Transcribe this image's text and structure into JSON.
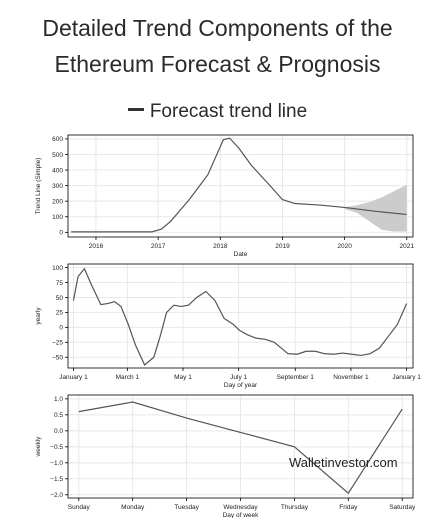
{
  "header": {
    "title_line1": "Detailed Trend Components of the",
    "title_line2": "Ethereum Forecast & Prognosis",
    "legend_label": "Forecast trend line"
  },
  "watermark": "Walletinvestor.com",
  "colors": {
    "line": "#555555",
    "band": "#cccccc",
    "axis": "#000000",
    "grid": "#e8e8e8"
  },
  "chart_data": [
    {
      "type": "line",
      "name": "trend",
      "title": "",
      "xlabel": "Date",
      "ylabel": "Trend Line (Simple)",
      "xlim": [
        2015.55,
        2021.1
      ],
      "ylim": [
        -30,
        625
      ],
      "xticks": [
        2016,
        2017,
        2018,
        2019,
        2020,
        2021
      ],
      "xticklabels": [
        "2016",
        "2017",
        "2018",
        "2019",
        "2020",
        "2021"
      ],
      "yticks": [
        0,
        100,
        200,
        300,
        400,
        500,
        600
      ],
      "yticklabels": [
        "0",
        "100",
        "200",
        "300",
        "400",
        "500",
        "600"
      ],
      "grid": true,
      "series": [
        {
          "x": [
            2015.6,
            2016.0,
            2016.5,
            2016.9,
            2017.05,
            2017.2,
            2017.5,
            2017.8,
            2018.05,
            2018.15,
            2018.3,
            2018.5,
            2018.8,
            2019.0,
            2019.2,
            2019.6,
            2020.0,
            2020.5,
            2021.0
          ],
          "y": [
            3,
            3,
            3,
            3,
            20,
            70,
            210,
            370,
            595,
            605,
            540,
            430,
            300,
            210,
            185,
            175,
            160,
            135,
            115
          ]
        }
      ],
      "band": {
        "x": [
          2020.0,
          2020.2,
          2020.4,
          2020.6,
          2020.8,
          2021.0
        ],
        "lower": [
          150,
          125,
          70,
          15,
          5,
          5
        ],
        "upper": [
          160,
          175,
          195,
          225,
          265,
          305
        ]
      }
    },
    {
      "type": "line",
      "name": "yearly",
      "title": "",
      "xlabel": "Day of year",
      "ylabel": "yearly",
      "xlim": [
        -6,
        372
      ],
      "ylim": [
        -68,
        106
      ],
      "xticks": [
        0,
        59,
        120,
        181,
        243,
        304,
        365
      ],
      "xticklabels": [
        "January 1",
        "March 1",
        "May 1",
        "July 1",
        "September 1",
        "November 1",
        "January 1"
      ],
      "yticks": [
        -50,
        -25,
        0,
        25,
        50,
        75,
        100
      ],
      "yticklabels": [
        "−50",
        "−25",
        "0",
        "25",
        "50",
        "75",
        "100"
      ],
      "grid": true,
      "series": [
        {
          "x": [
            0,
            5,
            12,
            20,
            30,
            38,
            45,
            52,
            60,
            68,
            78,
            88,
            95,
            102,
            110,
            118,
            126,
            135,
            145,
            155,
            165,
            175,
            182,
            190,
            200,
            210,
            220,
            235,
            245,
            255,
            265,
            275,
            285,
            295,
            305,
            315,
            325,
            335,
            345,
            355,
            365
          ],
          "y": [
            45,
            85,
            98,
            70,
            38,
            40,
            43,
            35,
            5,
            -30,
            -63,
            -50,
            -15,
            25,
            37,
            35,
            37,
            50,
            60,
            45,
            15,
            5,
            -5,
            -12,
            -18,
            -20,
            -25,
            -44,
            -45,
            -40,
            -40,
            -44,
            -45,
            -43,
            -45,
            -47,
            -44,
            -35,
            -15,
            5,
            40
          ]
        }
      ]
    },
    {
      "type": "line",
      "name": "weekly",
      "title": "",
      "xlabel": "Day of week",
      "ylabel": "weekly",
      "xlim": [
        -0.2,
        6.2
      ],
      "ylim": [
        -2.1,
        1.12
      ],
      "xticks": [
        0,
        1,
        2,
        3,
        4,
        5,
        6
      ],
      "xticklabels": [
        "Sunday",
        "Monday",
        "Tuesday",
        "Wednesday",
        "Thursday",
        "Friday",
        "Saturday"
      ],
      "yticks": [
        -2.0,
        -1.5,
        -1.0,
        -0.5,
        0.0,
        0.5,
        1.0
      ],
      "yticklabels": [
        "−2.0",
        "−1.5",
        "−1.0",
        "−0.5",
        "0.0",
        "0.5",
        "1.0"
      ],
      "grid": true,
      "series": [
        {
          "x": [
            0,
            1,
            2,
            3,
            4,
            5,
            6
          ],
          "y": [
            0.6,
            0.9,
            0.4,
            -0.05,
            -0.5,
            -1.95,
            0.68
          ]
        }
      ]
    }
  ]
}
